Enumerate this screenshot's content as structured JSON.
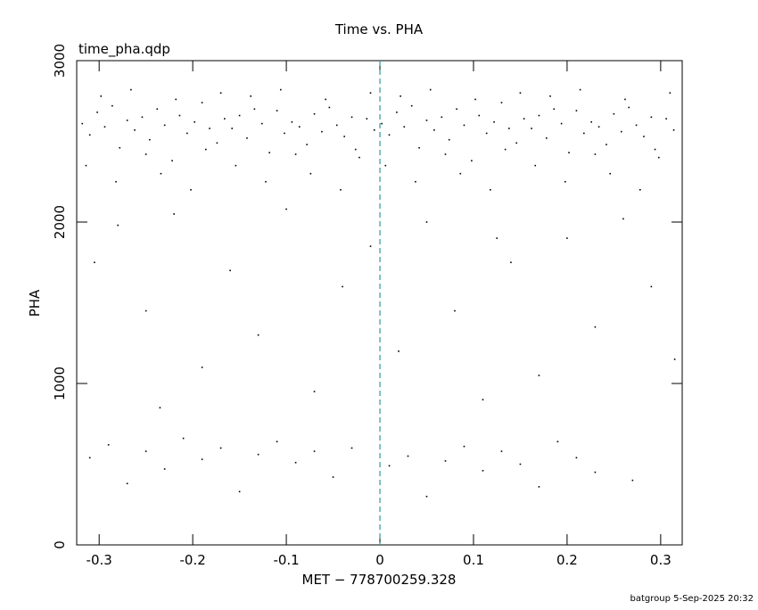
{
  "chart_data": {
    "type": "scatter",
    "title": "Time vs. PHA",
    "annotation": "time_pha.qdp",
    "x_label": "MET − 778700259.328",
    "y_label": "PHA",
    "footer": "batgroup  5-Sep-2025 20:32",
    "xlim": [
      -0.324,
      0.323
    ],
    "ylim": [
      0,
      3000
    ],
    "xticks": [
      -0.3,
      -0.2,
      -0.1,
      0,
      0.1,
      0.2,
      0.3
    ],
    "yticks": [
      0,
      1000,
      2000,
      3000
    ],
    "vline": {
      "x": 0,
      "color": "#2a9aa0"
    },
    "series": [
      {
        "color": "#000000",
        "x": [
          -0.318,
          -0.31,
          -0.302,
          -0.294,
          -0.286,
          -0.278,
          -0.27,
          -0.262,
          -0.254,
          -0.246,
          -0.238,
          -0.23,
          -0.222,
          -0.214,
          -0.206,
          -0.198,
          -0.19,
          -0.182,
          -0.174,
          -0.166,
          -0.158,
          -0.15,
          -0.142,
          -0.134,
          -0.126,
          -0.118,
          -0.11,
          -0.102,
          -0.094,
          -0.086,
          -0.078,
          -0.07,
          -0.062,
          -0.054,
          -0.046,
          -0.038,
          -0.03,
          -0.022,
          -0.014,
          -0.006,
          0.002,
          0.01,
          0.018,
          0.026,
          0.034,
          0.042,
          0.05,
          0.058,
          0.066,
          0.074,
          0.082,
          0.09,
          0.098,
          0.106,
          0.114,
          0.122,
          0.13,
          0.138,
          0.146,
          0.154,
          0.162,
          0.17,
          0.178,
          0.186,
          0.194,
          0.202,
          0.21,
          0.218,
          0.226,
          0.234,
          0.242,
          0.25,
          0.258,
          0.266,
          0.274,
          0.282,
          0.29,
          0.298,
          0.306,
          0.314,
          -0.314,
          -0.298,
          -0.282,
          -0.266,
          -0.25,
          -0.234,
          -0.218,
          -0.202,
          -0.186,
          -0.17,
          -0.154,
          -0.138,
          -0.122,
          -0.106,
          -0.09,
          -0.074,
          -0.058,
          -0.042,
          -0.026,
          -0.01,
          0.006,
          0.022,
          0.038,
          0.054,
          0.07,
          0.086,
          0.102,
          0.118,
          0.134,
          0.15,
          0.166,
          0.182,
          0.198,
          0.214,
          0.23,
          0.246,
          0.262,
          0.278,
          0.294,
          0.31,
          -0.305,
          -0.28,
          -0.25,
          -0.22,
          -0.19,
          -0.16,
          -0.13,
          -0.1,
          -0.07,
          -0.04,
          -0.01,
          0.02,
          0.05,
          0.08,
          0.11,
          0.14,
          0.17,
          0.2,
          0.23,
          0.26,
          0.29,
          0.315,
          -0.235,
          0.125,
          -0.31,
          -0.29,
          -0.27,
          -0.25,
          -0.23,
          -0.21,
          -0.19,
          -0.17,
          -0.15,
          -0.13,
          -0.11,
          -0.09,
          -0.07,
          -0.05,
          -0.03,
          0.01,
          0.03,
          0.05,
          0.07,
          0.09,
          0.11,
          0.13,
          0.15,
          0.17,
          0.19,
          0.21,
          0.23,
          0.27
        ],
        "values": [
          2610,
          2540,
          2680,
          2590,
          2720,
          2460,
          2630,
          2570,
          2650,
          2510,
          2700,
          2600,
          2380,
          2660,
          2550,
          2620,
          2740,
          2580,
          2490,
          2640,
          2580,
          2660,
          2520,
          2700,
          2610,
          2430,
          2690,
          2550,
          2620,
          2590,
          2480,
          2670,
          2560,
          2710,
          2600,
          2530,
          2650,
          2400,
          2640,
          2570,
          2610,
          2540,
          2680,
          2590,
          2720,
          2460,
          2630,
          2570,
          2650,
          2510,
          2700,
          2600,
          2380,
          2660,
          2550,
          2620,
          2740,
          2580,
          2490,
          2640,
          2580,
          2660,
          2520,
          2700,
          2610,
          2430,
          2690,
          2550,
          2620,
          2590,
          2480,
          2670,
          2560,
          2710,
          2600,
          2530,
          2650,
          2400,
          2640,
          2570,
          2350,
          2780,
          2250,
          2820,
          2420,
          2300,
          2760,
          2200,
          2450,
          2800,
          2350,
          2780,
          2250,
          2820,
          2420,
          2300,
          2760,
          2200,
          2450,
          2800,
          2350,
          2780,
          2250,
          2820,
          2420,
          2300,
          2760,
          2200,
          2450,
          2800,
          2350,
          2780,
          2250,
          2820,
          2420,
          2300,
          2760,
          2200,
          2450,
          2800,
          1750,
          1980,
          1450,
          2050,
          1100,
          1700,
          1300,
          2080,
          950,
          1600,
          1850,
          1200,
          2000,
          1450,
          900,
          1750,
          1050,
          1900,
          1350,
          2020,
          1600,
          1150,
          850,
          1900,
          540,
          620,
          380,
          580,
          470,
          660,
          530,
          600,
          330,
          560,
          640,
          510,
          580,
          420,
          600,
          490,
          550,
          300,
          520,
          610,
          460,
          580,
          500,
          360,
          640,
          540,
          450,
          400
        ]
      }
    ]
  }
}
